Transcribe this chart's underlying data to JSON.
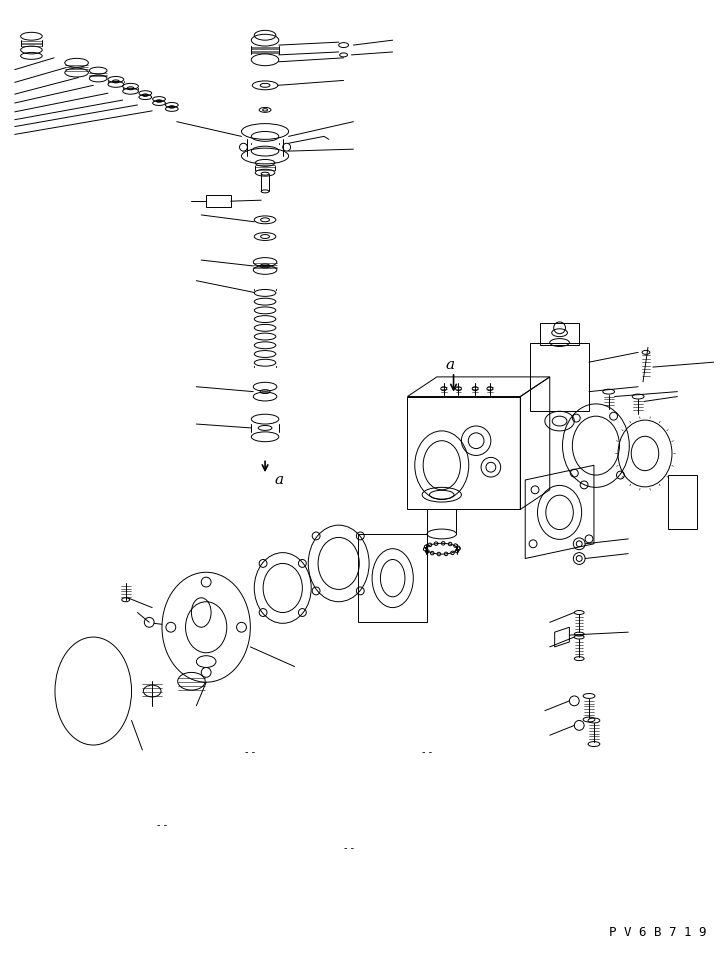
{
  "fig_width": 7.27,
  "fig_height": 9.58,
  "dpi": 100,
  "bg_color": "#ffffff",
  "line_color": "#000000",
  "lw": 0.7,
  "lw_thin": 0.4,
  "watermark": "P V 6 B 7 1 9"
}
